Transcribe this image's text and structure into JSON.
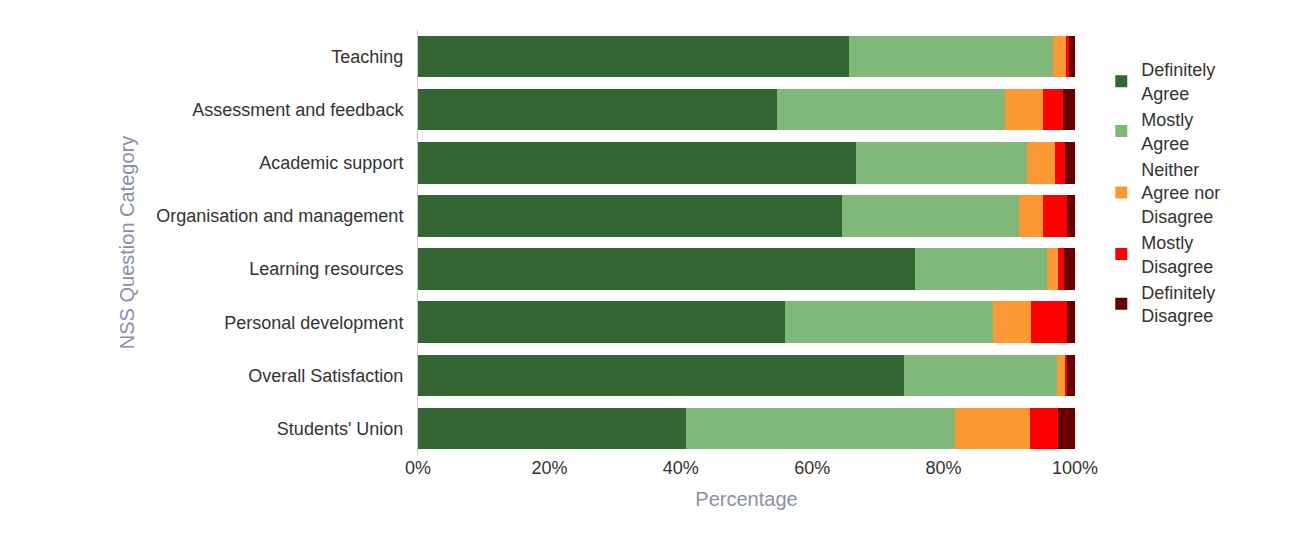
{
  "chart_data": {
    "type": "bar",
    "orientation": "horizontal",
    "stacked": true,
    "x_label": "Percentage",
    "y_label": "NSS Question Category",
    "categories": [
      "Teaching",
      "Assessment and feedback",
      "Academic support",
      "Organisation and management",
      "Learning resources",
      "Personal development",
      "Overall Satisfaction",
      "Students' Union"
    ],
    "series": [
      {
        "name": "Definitely Agree",
        "color": "#336633",
        "values": [
          65.6,
          54.6,
          66.7,
          64.5,
          75.6,
          55.9,
          74.0,
          40.8
        ]
      },
      {
        "name": "Mostly Agree",
        "color": "#80b87a",
        "values": [
          31.0,
          34.7,
          26.0,
          27.0,
          20.1,
          31.6,
          23.3,
          40.9
        ]
      },
      {
        "name": "Neither Agree nor Disagree",
        "color": "#fb9a34",
        "values": [
          2.0,
          5.8,
          4.3,
          3.6,
          1.7,
          5.8,
          1.2,
          11.4
        ]
      },
      {
        "name": "Mostly Disagree",
        "color": "#ff0000",
        "values": [
          0.5,
          3.1,
          1.5,
          3.7,
          0.9,
          5.5,
          0.3,
          4.3
        ]
      },
      {
        "name": "Definitely Disagree",
        "color": "#660000",
        "values": [
          0.9,
          1.8,
          1.5,
          1.2,
          1.7,
          1.2,
          1.2,
          2.6
        ]
      }
    ],
    "xlim": [
      0,
      100
    ],
    "xticks": [
      {
        "value": 0,
        "label": "0%"
      },
      {
        "value": 20,
        "label": "20%"
      },
      {
        "value": 40,
        "label": "40%"
      },
      {
        "value": 60,
        "label": "60%"
      },
      {
        "value": 80,
        "label": "80%"
      },
      {
        "value": 100,
        "label": "100%"
      }
    ],
    "grid": false,
    "legend": "right"
  }
}
